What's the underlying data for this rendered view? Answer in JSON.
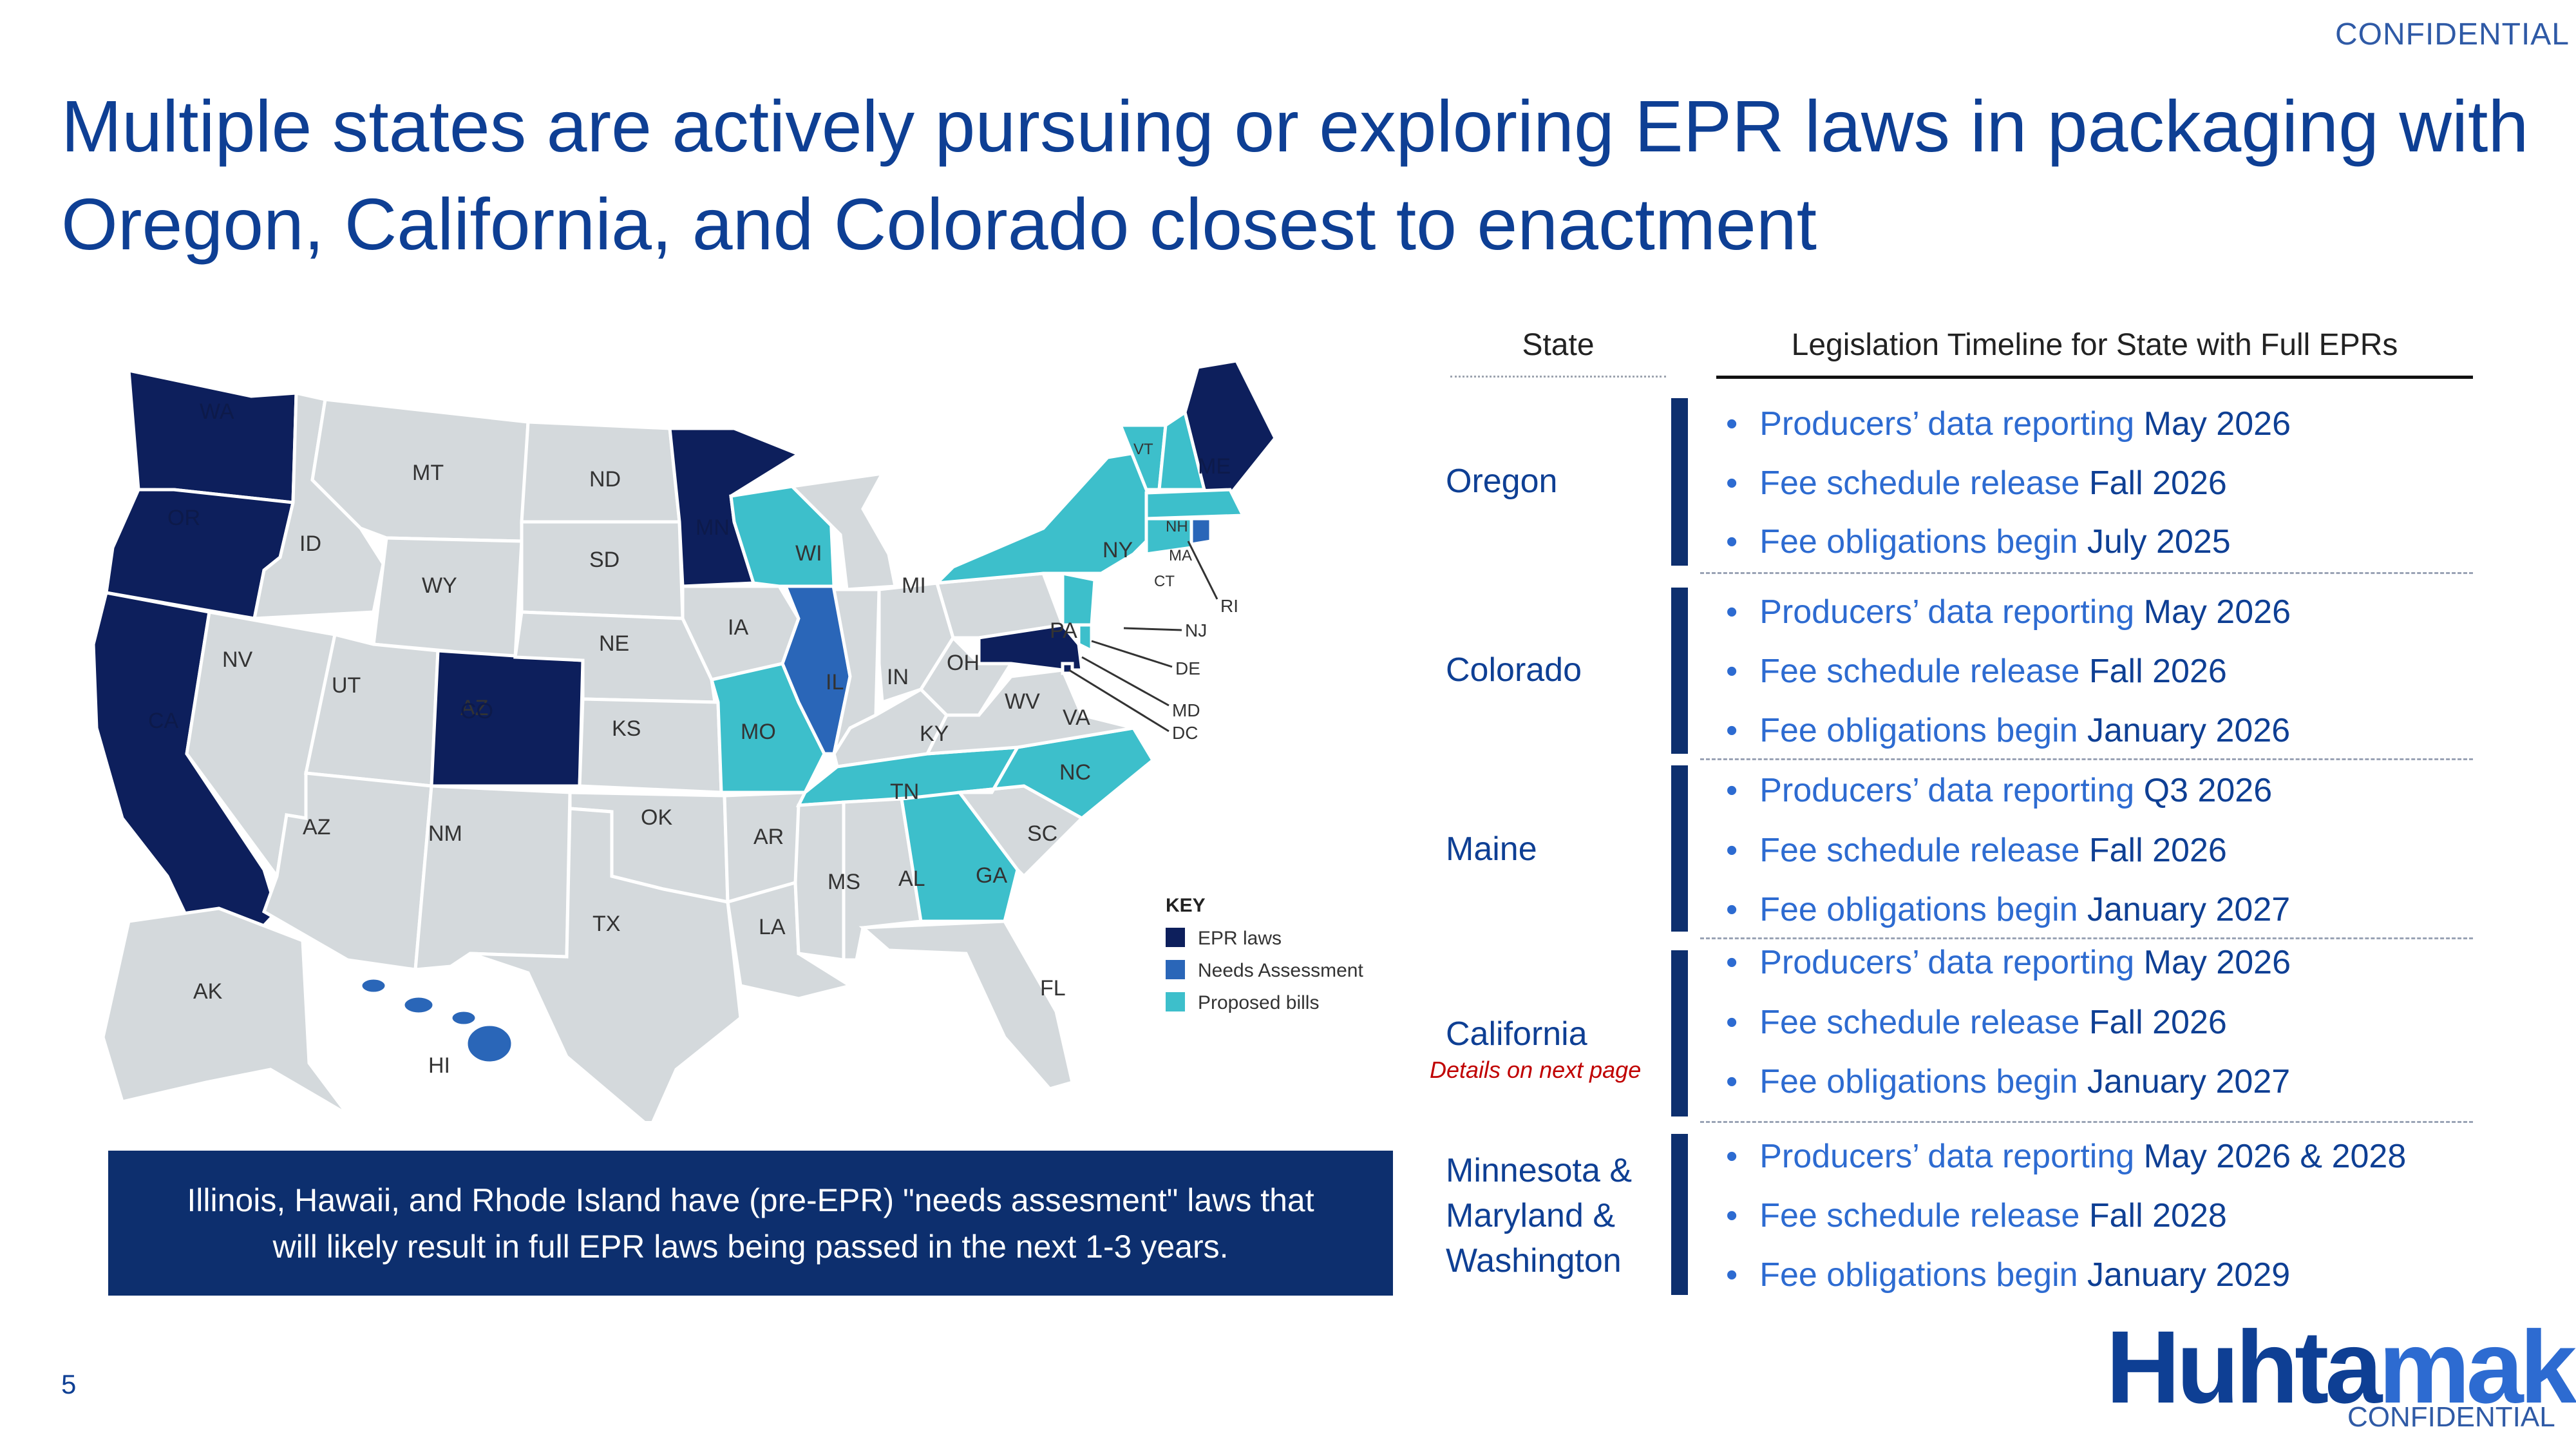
{
  "header": {
    "confidential": "CONFIDENTIAL",
    "title": "Multiple states are actively pursuing or exploring EPR laws in packaging with Oregon, California, and Colorado closest to enactment"
  },
  "map": {
    "colors": {
      "epr": "#0d1f5c",
      "needs": "#2a66b8",
      "proposed": "#3dbfcb",
      "none": "#d4d9dc"
    },
    "key": {
      "title": "KEY",
      "items": [
        {
          "label": "EPR laws",
          "color": "#0d1f5c"
        },
        {
          "label": "Needs Assessment",
          "color": "#2a66b8"
        },
        {
          "label": "Proposed bills",
          "color": "#3dbfcb"
        }
      ]
    },
    "labels": {
      "WA": "WA",
      "OR": "OR",
      "CA": "CA",
      "ID": "ID",
      "NV": "NV",
      "MT": "MT",
      "WY": "WY",
      "UT": "UT",
      "AZ": "AZ",
      "CO": "CO",
      "NM": "NM",
      "ND": "ND",
      "SD": "SD",
      "NE": "NE",
      "KS": "KS",
      "OK": "OK",
      "TX": "TX",
      "MN": "MN",
      "IA": "IA",
      "MO": "MO",
      "AR": "AR",
      "LA": "LA",
      "WI": "WI",
      "IL": "IL",
      "MI": "MI",
      "IN": "IN",
      "OH": "OH",
      "KY": "KY",
      "TN": "TN",
      "MS": "MS",
      "AL": "AL",
      "GA": "GA",
      "FL": "FL",
      "SC": "SC",
      "NC": "NC",
      "VA": "VA",
      "WV": "WV",
      "PA": "PA",
      "NY": "NY",
      "ME": "ME",
      "VT": "VT",
      "NH": "NH",
      "MA": "MA",
      "CT": "CT",
      "RI": "RI",
      "NJ": "NJ",
      "DE": "DE",
      "MD": "MD",
      "DC": "DC",
      "AK": "AK",
      "HI": "HI"
    }
  },
  "callout": "Illinois, Hawaii, and Rhode Island have (pre-EPR) \"needs assesment\" laws that will  likely result in full EPR laws being passed in the next 1-3 years.",
  "table": {
    "header_state": "State",
    "header_timeline": "Legislation Timeline for State with Full EPRs",
    "rows": [
      {
        "state": "Oregon",
        "bullets": [
          {
            "text": "Producers’ data reporting ",
            "value": "May 2026"
          },
          {
            "text": "Fee schedule release ",
            "value": "Fall 2026"
          },
          {
            "text": "Fee obligations begin ",
            "value": "July 2025"
          }
        ]
      },
      {
        "state": "Colorado",
        "bullets": [
          {
            "text": "Producers’ data reporting ",
            "value": "May 2026"
          },
          {
            "text": "Fee schedule release ",
            "value": "Fall 2026"
          },
          {
            "text": "Fee obligations begin ",
            "value": "January 2026"
          }
        ]
      },
      {
        "state": "Maine",
        "bullets": [
          {
            "text": "Producers’ data reporting ",
            "value": "Q3 2026"
          },
          {
            "text": "Fee schedule release ",
            "value": "Fall 2026"
          },
          {
            "text": "Fee obligations begin ",
            "value": "January 2027"
          }
        ]
      },
      {
        "state": "California",
        "note": "Details on next page",
        "bullets": [
          {
            "text": "Producers’ data reporting ",
            "value": "May 2026"
          },
          {
            "text": "Fee schedule release ",
            "value": "Fall  2026"
          },
          {
            "text": "Fee obligations begin ",
            "value": "January 2027"
          }
        ]
      },
      {
        "state_lines": [
          "Minnesota &",
          "Maryland &",
          "Washington"
        ],
        "bullets": [
          {
            "text": "Producers’ data reporting ",
            "value": "May 2026 & 2028"
          },
          {
            "text": "Fee schedule release ",
            "value": "Fall 2028"
          },
          {
            "text": "Fee obligations begin ",
            "value": "January 2029"
          }
        ]
      }
    ]
  },
  "footer": {
    "page_number": "5",
    "logo_part1": "Huhta",
    "logo_part2": "maki",
    "confidential": "CONFIDENTIAL"
  }
}
